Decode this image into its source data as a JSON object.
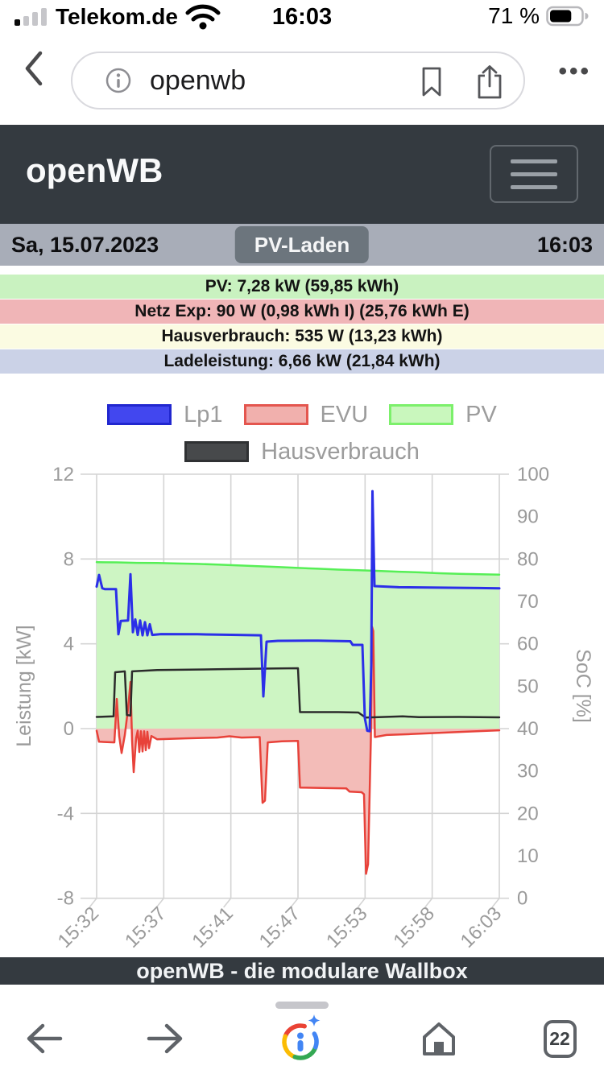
{
  "status_bar": {
    "carrier": "Telekom.de",
    "time": "16:03",
    "battery_text": "71 %",
    "battery_level": 71
  },
  "browser": {
    "url": "openwb",
    "more_label": "•••"
  },
  "app_header": {
    "title": "openWB"
  },
  "date_bar": {
    "date": "Sa, 15.07.2023",
    "mode_button": "PV-Laden",
    "time": "16:03"
  },
  "status_rows": [
    {
      "label": "PV: 7,28 kW (59,85 kWh)",
      "bg": "#c9f2c0"
    },
    {
      "label": "Netz Exp: 90 W (0,98 kWh I) (25,76 kWh E)",
      "bg": "#f0b5b7"
    },
    {
      "label": "Hausverbrauch: 535 W (13,23 kWh)",
      "bg": "#fbfbe2"
    },
    {
      "label": "Ladeleistung: 6,66 kW (21,84 kWh)",
      "bg": "#cbd2e7"
    }
  ],
  "legend": {
    "rows": [
      [
        {
          "label": "Lp1",
          "fill": "#4247ef",
          "border": "#2127cf"
        },
        {
          "label": "EVU",
          "fill": "#f1b0ad",
          "border": "#e4564f"
        },
        {
          "label": "PV",
          "fill": "#c9f7bd",
          "border": "#7cf06b"
        }
      ],
      [
        {
          "label": "Hausverbrauch",
          "fill": "#47494b",
          "border": "#2f3133"
        }
      ]
    ]
  },
  "chart_data": {
    "type": "line",
    "x_ticks": [
      "15:32",
      "15:37",
      "15:41",
      "15:47",
      "15:53",
      "15:58",
      "16:03"
    ],
    "y_left": {
      "title": "Leistung [kW]",
      "ticks": [
        12,
        8,
        4,
        0,
        -4,
        -8
      ],
      "min": -8,
      "max": 12
    },
    "y_right": {
      "title": "SoC [%]",
      "ticks": [
        100,
        90,
        80,
        70,
        60,
        50,
        40,
        30,
        20,
        10,
        0
      ],
      "min": 0,
      "max": 100
    },
    "grid": true,
    "series": [
      {
        "name": "PV",
        "color": "#56ef56",
        "fill": "#cdf5c3",
        "width": 2.5,
        "points": [
          [
            0,
            7.85
          ],
          [
            0.05,
            7.84
          ],
          [
            0.1,
            7.82
          ],
          [
            0.15,
            7.81
          ],
          [
            0.2,
            7.79
          ],
          [
            0.25,
            7.77
          ],
          [
            0.3,
            7.74
          ],
          [
            0.35,
            7.7
          ],
          [
            0.4,
            7.66
          ],
          [
            0.45,
            7.62
          ],
          [
            0.5,
            7.58
          ],
          [
            0.55,
            7.54
          ],
          [
            0.6,
            7.5
          ],
          [
            0.65,
            7.47
          ],
          [
            0.7,
            7.44
          ],
          [
            0.75,
            7.4
          ],
          [
            0.8,
            7.37
          ],
          [
            0.85,
            7.33
          ],
          [
            0.9,
            7.3
          ],
          [
            0.95,
            7.28
          ],
          [
            1,
            7.26
          ]
        ]
      },
      {
        "name": "EVU",
        "color": "#e8423a",
        "fill": "#f3bcb8",
        "width": 2.5,
        "points": [
          [
            0,
            -0.1
          ],
          [
            0.006,
            -0.62
          ],
          [
            0.044,
            -0.65
          ],
          [
            0.05,
            1.4
          ],
          [
            0.056,
            -0.35
          ],
          [
            0.062,
            -1.15
          ],
          [
            0.07,
            -0.3
          ],
          [
            0.078,
            0.95
          ],
          [
            0.084,
            2.2
          ],
          [
            0.088,
            -0.55
          ],
          [
            0.092,
            -2.05
          ],
          [
            0.098,
            -0.45
          ],
          [
            0.102,
            -0.1
          ],
          [
            0.106,
            -1.1
          ],
          [
            0.11,
            -0.12
          ],
          [
            0.114,
            -1.08
          ],
          [
            0.118,
            -0.12
          ],
          [
            0.122,
            -1.02
          ],
          [
            0.126,
            -0.15
          ],
          [
            0.13,
            -0.92
          ],
          [
            0.136,
            -0.35
          ],
          [
            0.15,
            -0.5
          ],
          [
            0.22,
            -0.46
          ],
          [
            0.3,
            -0.42
          ],
          [
            0.33,
            -0.36
          ],
          [
            0.36,
            -0.42
          ],
          [
            0.405,
            -0.4
          ],
          [
            0.412,
            -3.5
          ],
          [
            0.418,
            -3.4
          ],
          [
            0.425,
            -0.65
          ],
          [
            0.46,
            -0.6
          ],
          [
            0.5,
            -0.58
          ],
          [
            0.505,
            -2.78
          ],
          [
            0.56,
            -2.8
          ],
          [
            0.62,
            -2.82
          ],
          [
            0.628,
            -2.97
          ],
          [
            0.658,
            -3.0
          ],
          [
            0.664,
            -3.1
          ],
          [
            0.669,
            -6.85
          ],
          [
            0.674,
            -6.4
          ],
          [
            0.681,
            -0.5
          ],
          [
            0.684,
            4.8
          ],
          [
            0.687,
            4.6
          ],
          [
            0.691,
            -0.4
          ],
          [
            0.72,
            -0.3
          ],
          [
            0.78,
            -0.26
          ],
          [
            0.85,
            -0.2
          ],
          [
            0.92,
            -0.14
          ],
          [
            1,
            -0.08
          ]
        ]
      },
      {
        "name": "Hausverbrauch",
        "color": "#2b2b2b",
        "width": 2.5,
        "points": [
          [
            0,
            0.55
          ],
          [
            0.042,
            0.58
          ],
          [
            0.046,
            2.66
          ],
          [
            0.07,
            2.7
          ],
          [
            0.075,
            0.64
          ],
          [
            0.084,
            0.62
          ],
          [
            0.088,
            2.7
          ],
          [
            0.15,
            2.76
          ],
          [
            0.3,
            2.8
          ],
          [
            0.45,
            2.84
          ],
          [
            0.5,
            2.85
          ],
          [
            0.505,
            0.78
          ],
          [
            0.6,
            0.78
          ],
          [
            0.65,
            0.76
          ],
          [
            0.668,
            0.52
          ],
          [
            0.7,
            0.54
          ],
          [
            0.76,
            0.58
          ],
          [
            0.8,
            0.54
          ],
          [
            0.9,
            0.55
          ],
          [
            1,
            0.53
          ]
        ]
      },
      {
        "name": "Lp1",
        "color": "#2b2fe8",
        "width": 3,
        "points": [
          [
            0,
            6.7
          ],
          [
            0.006,
            7.25
          ],
          [
            0.014,
            6.62
          ],
          [
            0.02,
            6.58
          ],
          [
            0.048,
            6.58
          ],
          [
            0.054,
            4.45
          ],
          [
            0.06,
            5.08
          ],
          [
            0.078,
            5.1
          ],
          [
            0.084,
            7.28
          ],
          [
            0.09,
            4.55
          ],
          [
            0.096,
            5.15
          ],
          [
            0.102,
            4.42
          ],
          [
            0.108,
            5.1
          ],
          [
            0.114,
            4.4
          ],
          [
            0.12,
            5.02
          ],
          [
            0.126,
            4.4
          ],
          [
            0.132,
            4.92
          ],
          [
            0.138,
            4.42
          ],
          [
            0.16,
            4.46
          ],
          [
            0.25,
            4.45
          ],
          [
            0.35,
            4.42
          ],
          [
            0.408,
            4.4
          ],
          [
            0.414,
            1.52
          ],
          [
            0.422,
            4.1
          ],
          [
            0.45,
            4.14
          ],
          [
            0.55,
            4.15
          ],
          [
            0.63,
            4.12
          ],
          [
            0.636,
            3.95
          ],
          [
            0.66,
            3.95
          ],
          [
            0.666,
            0.5
          ],
          [
            0.672,
            -0.1
          ],
          [
            0.678,
            -0.12
          ],
          [
            0.682,
            3.0
          ],
          [
            0.685,
            11.2
          ],
          [
            0.69,
            6.72
          ],
          [
            0.75,
            6.67
          ],
          [
            0.85,
            6.65
          ],
          [
            0.95,
            6.63
          ],
          [
            1,
            6.62
          ]
        ]
      }
    ]
  },
  "footer": {
    "text": "openWB - die modulare Wallbox"
  },
  "toolbar": {
    "tab_count": "22"
  }
}
